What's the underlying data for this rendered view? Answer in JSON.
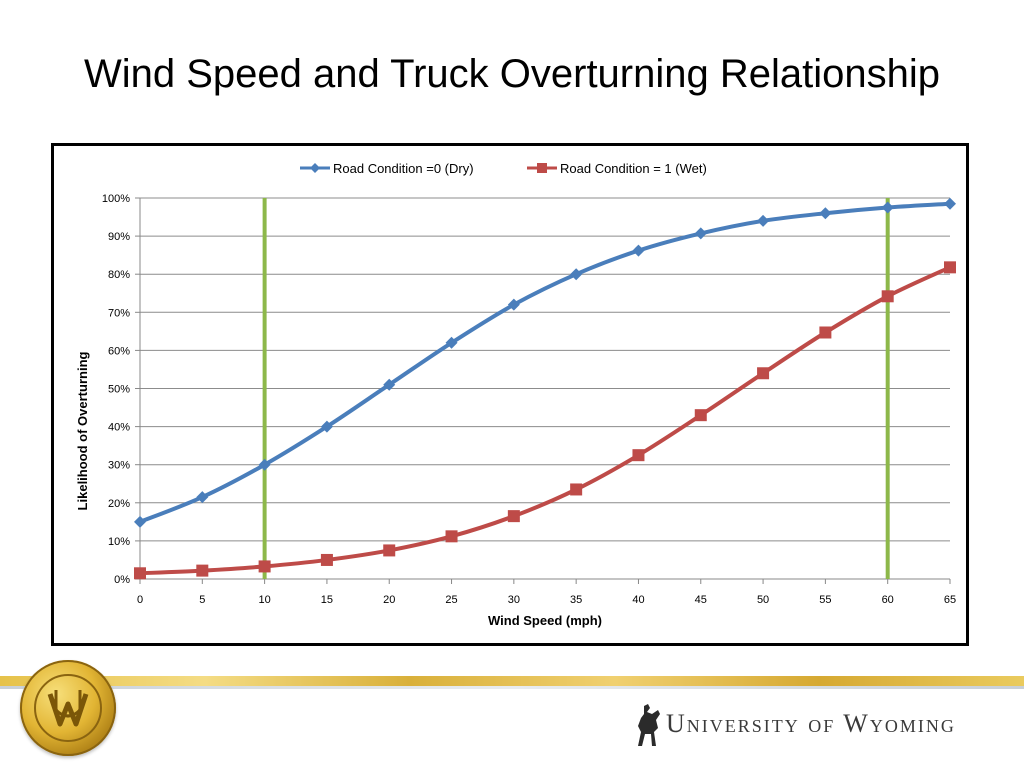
{
  "slide": {
    "title": "Wind Speed and Truck Overturning Relationship"
  },
  "branding": {
    "university_name": "University of Wyoming",
    "seal_label": "UW"
  },
  "colors": {
    "dry": "#4a7ebb",
    "wet": "#be4b48",
    "marker_lines": "#8db84a",
    "gold": "#e2b534"
  },
  "chart_data": {
    "type": "line",
    "xlabel": "Wind Speed (mph)",
    "ylabel": "Likelihood of Overturning",
    "x": [
      0,
      5,
      10,
      15,
      20,
      25,
      30,
      35,
      40,
      45,
      50,
      55,
      60,
      65
    ],
    "x_ticks": [
      "0",
      "5",
      "10",
      "15",
      "20",
      "25",
      "30",
      "35",
      "40",
      "45",
      "50",
      "55",
      "60",
      "65"
    ],
    "ylim": [
      0,
      1
    ],
    "y_ticks": [
      "0%",
      "10%",
      "20%",
      "30%",
      "40%",
      "50%",
      "60%",
      "70%",
      "80%",
      "90%",
      "100%"
    ],
    "grid": "horizontal",
    "legend": "top-center",
    "series": [
      {
        "name": "Road Condition =0 (Dry)",
        "marker": "diamond",
        "values": [
          0.15,
          0.215,
          0.3,
          0.4,
          0.51,
          0.62,
          0.72,
          0.8,
          0.862,
          0.907,
          0.94,
          0.96,
          0.975,
          0.985
        ]
      },
      {
        "name": "Road Condition = 1 (Wet)",
        "marker": "square",
        "values": [
          0.015,
          0.022,
          0.033,
          0.05,
          0.075,
          0.112,
          0.165,
          0.235,
          0.325,
          0.43,
          0.54,
          0.647,
          0.742,
          0.818
        ]
      }
    ],
    "vertical_markers": [
      10,
      60
    ]
  }
}
